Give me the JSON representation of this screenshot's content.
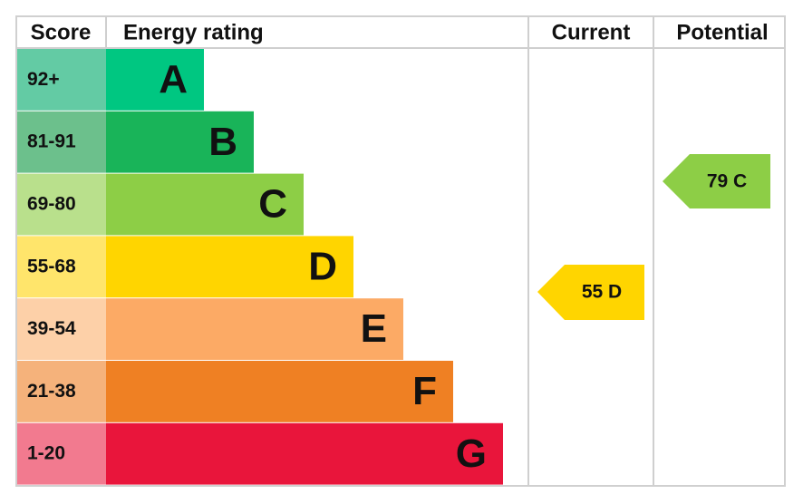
{
  "header": {
    "score": "Score",
    "energy_rating": "Energy rating",
    "current": "Current",
    "potential": "Potential"
  },
  "rows": [
    {
      "score": "92+",
      "rating": "A",
      "color": "#00c781",
      "score_color": "#63cba4"
    },
    {
      "score": "81-91",
      "rating": "B",
      "color": "#19b459",
      "score_color": "#6cc08c"
    },
    {
      "score": "69-80",
      "rating": "C",
      "color": "#8dce46",
      "score_color": "#b9e08c"
    },
    {
      "score": "55-68",
      "rating": "D",
      "color": "#ffd500",
      "score_color": "#ffe56b"
    },
    {
      "score": "39-54",
      "rating": "E",
      "color": "#fcaa65",
      "score_color": "#fdd0a8"
    },
    {
      "score": "21-38",
      "rating": "F",
      "color": "#ef8023",
      "score_color": "#f5b27b"
    },
    {
      "score": "1-20",
      "rating": "G",
      "color": "#e9153b",
      "score_color": "#f27a8f"
    }
  ],
  "current": {
    "label": "55 D",
    "color": "#ffd500"
  },
  "potential": {
    "label": "79 C",
    "color": "#8dce46"
  }
}
